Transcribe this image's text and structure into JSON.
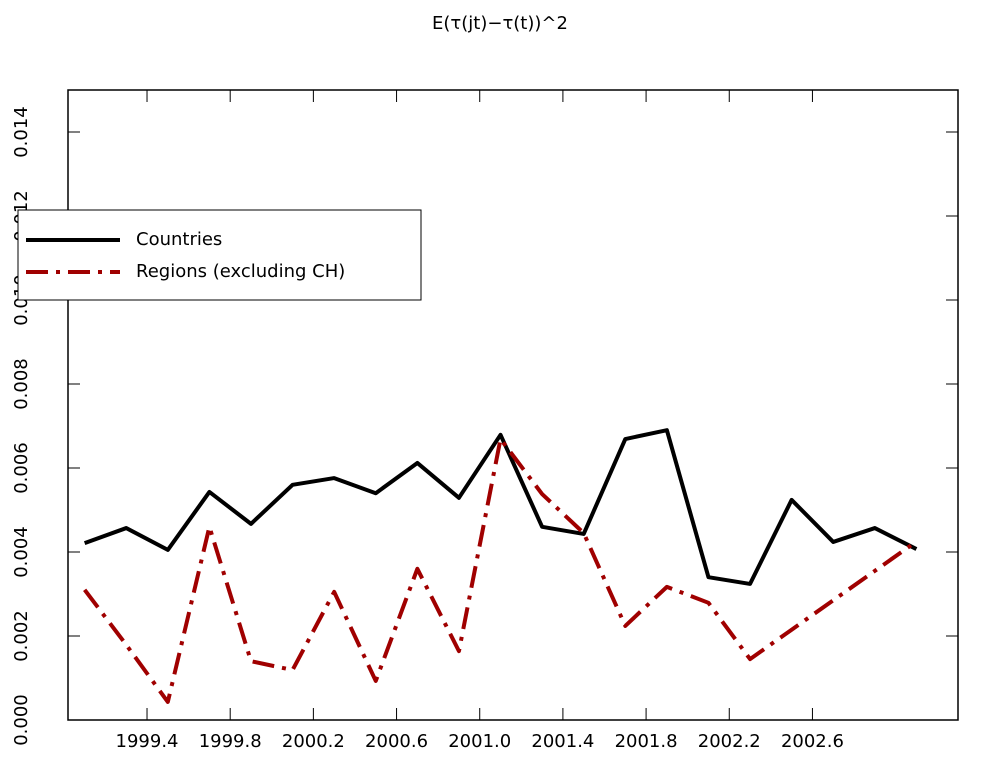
{
  "chart_data": {
    "type": "line",
    "title": "E(τ(jt)−τ(t))^2",
    "x": [
      1999.1,
      1999.3,
      1999.5,
      1999.7,
      1999.9,
      2000.1,
      2000.3,
      2000.5,
      2000.7,
      2000.9,
      2001.1,
      2001.3,
      2001.5,
      2001.7,
      2001.9,
      2002.1,
      2002.3,
      2002.5,
      2002.7,
      2002.9,
      2003.1
    ],
    "series": [
      {
        "name": "Countries",
        "color": "#000000",
        "style": "solid",
        "values": [
          0.00421,
          0.00457,
          0.00405,
          0.00543,
          0.00467,
          0.0056,
          0.00576,
          0.0054,
          0.00612,
          0.00529,
          0.00679,
          0.0046,
          0.00443,
          0.00669,
          0.0069,
          0.0034,
          0.00324,
          0.00524,
          0.00424,
          0.00457,
          0.00407
        ]
      },
      {
        "name": "Regions (excluding CH)",
        "color": "#a00000",
        "style": "dashdot",
        "values": [
          0.0031,
          0.00179,
          0.00043,
          0.0046,
          0.0014,
          0.00119,
          0.00305,
          0.00093,
          0.0036,
          0.00164,
          0.00669,
          0.00538,
          0.00445,
          0.00224,
          0.00317,
          0.00279,
          0.00145,
          0.00215,
          0.00285,
          0.00355,
          0.00425
        ]
      }
    ],
    "xlim": [
      1999.02,
      2003.3
    ],
    "xticks": [
      {
        "value": 1999.4,
        "label": "1999.4"
      },
      {
        "value": 1999.8,
        "label": "1999.8"
      },
      {
        "value": 2000.2,
        "label": "2000.2"
      },
      {
        "value": 2000.6,
        "label": "2000.6"
      },
      {
        "value": 2001.0,
        "label": "2001.0"
      },
      {
        "value": 2001.4,
        "label": "2001.4"
      },
      {
        "value": 2001.8,
        "label": "2001.8"
      },
      {
        "value": 2002.2,
        "label": "2002.2"
      },
      {
        "value": 2002.6,
        "label": "2002.6"
      }
    ],
    "ylim": [
      0,
      0.015
    ],
    "yticks": [
      {
        "value": 0,
        "label": "0.000"
      },
      {
        "value": 0.002,
        "label": "0.002"
      },
      {
        "value": 0.004,
        "label": "0.004"
      },
      {
        "value": 0.006,
        "label": "0.006"
      },
      {
        "value": 0.008,
        "label": "0.008"
      },
      {
        "value": 0.01,
        "label": "0.010"
      },
      {
        "value": 0.012,
        "label": "0.012"
      },
      {
        "value": 0.014,
        "label": "0.014"
      }
    ],
    "legend": "upper-left"
  }
}
